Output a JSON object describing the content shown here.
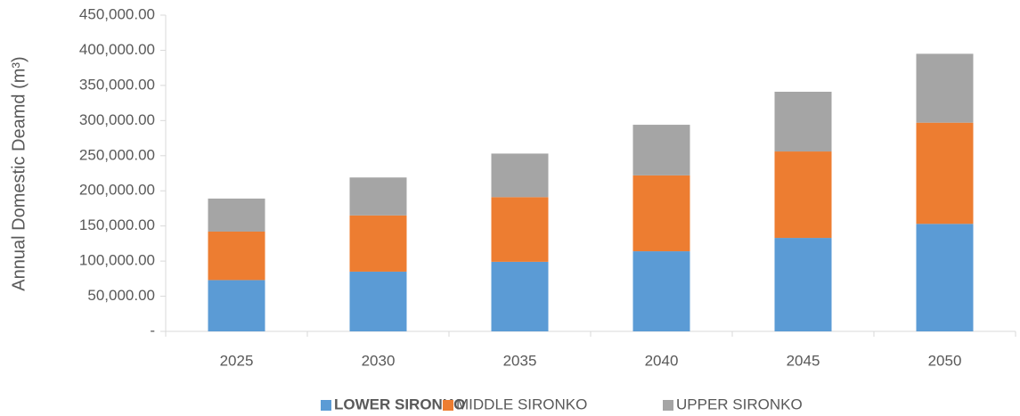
{
  "chart_data": {
    "type": "stacked_bar",
    "y_label": "Annual Domestic Deamd (m³)",
    "categories": [
      "2025",
      "2030",
      "2035",
      "2040",
      "2045",
      "2050"
    ],
    "series": [
      {
        "name": "LOWER SIRONKO",
        "color": "#5b9bd5",
        "values": [
          73000,
          85000,
          99000,
          114000,
          133000,
          153000
        ]
      },
      {
        "name": "MIDDLE SIRONKO",
        "color": "#ed7d31",
        "values": [
          69000,
          80000,
          92000,
          108000,
          123000,
          144000
        ]
      },
      {
        "name": "UPPER SIRONKO",
        "color": "#a5a5a5",
        "values": [
          47000,
          54000,
          62000,
          72000,
          85000,
          98000
        ]
      }
    ],
    "ylim": [
      0,
      450000
    ],
    "yticks": [
      {
        "value": 0,
        "label": "-"
      },
      {
        "value": 50000,
        "label": "50,000.00"
      },
      {
        "value": 100000,
        "label": "100,000.00"
      },
      {
        "value": 150000,
        "label": "150,000.00"
      },
      {
        "value": 200000,
        "label": "200,000.00"
      },
      {
        "value": 250000,
        "label": "250,000.00"
      },
      {
        "value": 300000,
        "label": "300,000.00"
      },
      {
        "value": 350000,
        "label": "350,000.00"
      },
      {
        "value": 400000,
        "label": "400,000.00"
      },
      {
        "value": 450000,
        "label": "450,000.00"
      }
    ],
    "grid": false,
    "legend": "bottom"
  }
}
